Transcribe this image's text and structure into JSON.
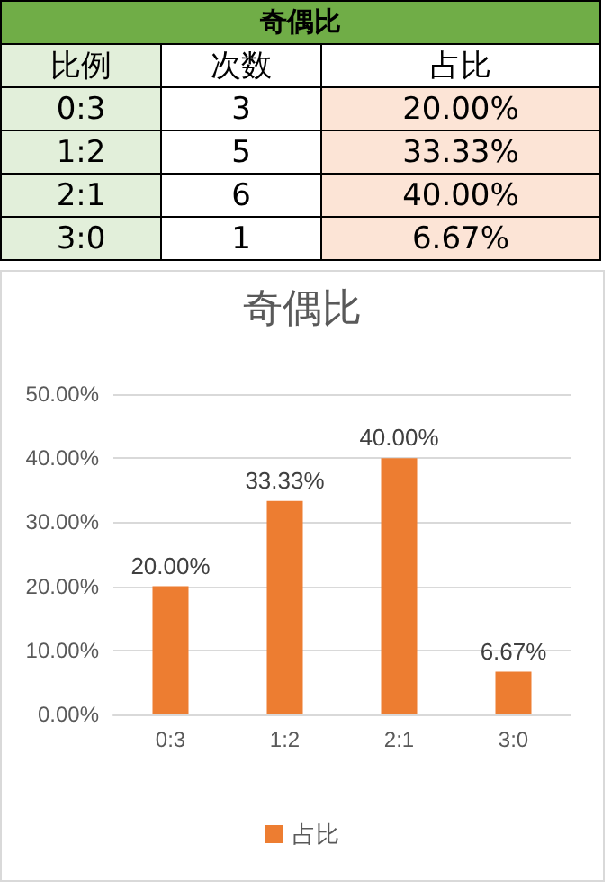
{
  "chart_data": [
    {
      "type": "other",
      "title": "奇偶比",
      "xlabel": "比例",
      "categories": [
        "0:3",
        "1:2",
        "2:1",
        "3:0"
      ],
      "series": [
        {
          "name": "次数",
          "values": [
            3,
            5,
            6,
            1
          ],
          "value_labels": [
            "3",
            "5",
            "6",
            "1"
          ]
        },
        {
          "name": "占比",
          "color": "#fce4d6",
          "values": [
            20,
            33.33,
            40,
            6.67
          ],
          "value_labels": [
            "20.00%",
            "33.33%",
            "40.00%",
            "6.67%"
          ]
        }
      ]
    },
    {
      "type": "bar",
      "title": "奇偶比",
      "categories": [
        "0:3",
        "1:2",
        "2:1",
        "3:0"
      ],
      "series": [
        {
          "name": "占比",
          "color": "#ed7d31",
          "values": [
            20,
            33.33,
            40,
            6.67
          ],
          "value_labels": [
            "20.00%",
            "33.33%",
            "40.00%",
            "6.67%"
          ]
        }
      ],
      "ylim": [
        0,
        50
      ],
      "yticks": [
        {
          "value": 0,
          "label": "0.00%"
        },
        {
          "value": 10,
          "label": "10.00%"
        },
        {
          "value": 20,
          "label": "20.00%"
        },
        {
          "value": 30,
          "label": "30.00%"
        },
        {
          "value": 40,
          "label": "40.00%"
        },
        {
          "value": 50,
          "label": "50.00%"
        }
      ],
      "grid": "y",
      "legend": "bottom"
    }
  ]
}
